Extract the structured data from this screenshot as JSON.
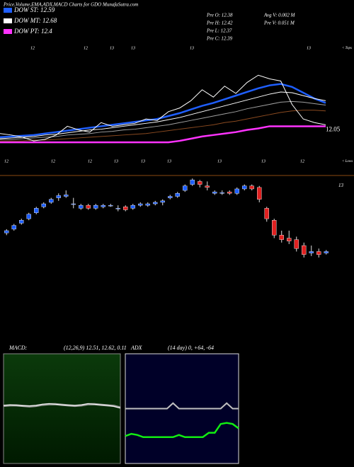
{
  "title": "Price,Volume,EMA,ADX,MACD Charts for GDO MunafaSutra.com",
  "stats": [
    "Pre  O: 12.38",
    "Avg V: 0.002  M",
    "Pre  H: 12.42",
    "Pre  V: 0.051  M",
    "Pre  L: 12.37",
    "Pre  C: 12.39"
  ],
  "chart_data": [
    {
      "type": "line",
      "ylim": [
        11.6,
        13.2
      ],
      "last_price": 12.05,
      "tops_label": "< Tops",
      "lows_label": "< Lows",
      "top_marks": [
        12,
        12,
        13,
        13,
        13,
        13
      ],
      "low_marks": [
        12,
        12,
        12,
        13,
        13,
        13,
        13,
        13,
        12
      ],
      "series": [
        {
          "name": "DOW ST: 12.59",
          "color": "#1f5fff",
          "width": 2.5,
          "values": [
            11.95,
            11.96,
            11.97,
            11.98,
            12.0,
            12.02,
            12.04,
            12.06,
            12.08,
            12.1,
            12.12,
            12.14,
            12.16,
            12.18,
            12.2,
            12.24,
            12.28,
            12.33,
            12.38,
            12.42,
            12.47,
            12.52,
            12.57,
            12.62,
            12.66,
            12.68,
            12.64,
            12.56,
            12.48,
            12.42
          ]
        },
        {
          "name": "DOW MT: 12.68",
          "color": "#ffffff",
          "width": 1,
          "values": [
            11.93,
            11.94,
            11.95,
            11.96,
            11.98,
            11.99,
            12.01,
            12.03,
            12.05,
            12.06,
            12.08,
            12.1,
            12.12,
            12.14,
            12.16,
            12.19,
            12.22,
            12.26,
            12.3,
            12.34,
            12.38,
            12.42,
            12.46,
            12.5,
            12.54,
            12.57,
            12.56,
            12.52,
            12.48,
            12.45
          ]
        },
        {
          "name": "DOW PT: 12.4",
          "color": "#ff33ff",
          "width": 2.5,
          "values": [
            11.88,
            11.88,
            11.88,
            11.88,
            11.88,
            11.88,
            11.88,
            11.88,
            11.88,
            11.88,
            11.88,
            11.88,
            11.88,
            11.88,
            11.88,
            11.88,
            11.9,
            11.93,
            11.96,
            11.98,
            12.0,
            12.02,
            12.05,
            12.07,
            12.1,
            12.1,
            12.1,
            12.1,
            12.1,
            12.1
          ]
        },
        {
          "color": "#a0a0a0",
          "width": 1,
          "values": [
            11.92,
            11.92,
            11.93,
            11.94,
            11.95,
            11.96,
            11.98,
            11.99,
            12.0,
            12.02,
            12.03,
            12.05,
            12.06,
            12.08,
            12.1,
            12.12,
            12.15,
            12.18,
            12.21,
            12.24,
            12.27,
            12.3,
            12.34,
            12.37,
            12.4,
            12.43,
            12.44,
            12.43,
            12.41,
            12.39
          ]
        },
        {
          "color": "#8a4a20",
          "width": 1,
          "values": [
            11.9,
            11.9,
            11.9,
            11.91,
            11.91,
            11.92,
            11.93,
            11.94,
            11.95,
            11.96,
            11.97,
            11.98,
            11.99,
            12.0,
            12.02,
            12.04,
            12.06,
            12.08,
            12.1,
            12.12,
            12.15,
            12.17,
            12.2,
            12.23,
            12.26,
            12.29,
            12.31,
            12.32,
            12.32,
            12.31
          ]
        },
        {
          "color": "#ffffff",
          "width": 1,
          "values": [
            12.0,
            11.98,
            11.95,
            11.9,
            11.92,
            11.98,
            12.1,
            12.05,
            12.02,
            12.15,
            12.1,
            12.12,
            12.14,
            12.2,
            12.18,
            12.3,
            12.35,
            12.45,
            12.6,
            12.5,
            12.65,
            12.55,
            12.7,
            12.8,
            12.75,
            12.72,
            12.4,
            12.2,
            12.15,
            12.12
          ]
        }
      ]
    },
    {
      "type": "candlestick",
      "ylim": [
        11.8,
        13.1
      ],
      "yticks": [
        13
      ],
      "up_color": "#1f5fff",
      "down_color": "#e02020",
      "open": [
        12.33,
        12.38,
        12.46,
        12.52,
        12.6,
        12.68,
        12.74,
        12.8,
        12.82,
        12.72,
        12.66,
        12.7,
        12.66,
        12.68,
        12.7,
        12.66,
        12.68,
        12.66,
        12.7,
        12.7,
        12.72,
        12.74,
        12.8,
        12.82,
        12.9,
        12.98,
        13.02,
        12.96,
        12.86,
        12.86,
        12.88,
        12.86,
        12.92,
        12.96,
        12.94,
        12.66,
        12.5,
        12.3,
        12.26,
        12.24,
        12.16,
        12.06,
        12.08,
        12.06
      ],
      "high": [
        12.38,
        12.45,
        12.52,
        12.6,
        12.68,
        12.74,
        12.8,
        12.86,
        12.9,
        12.8,
        12.72,
        12.72,
        12.72,
        12.72,
        12.72,
        12.7,
        12.7,
        12.72,
        12.74,
        12.74,
        12.76,
        12.78,
        12.84,
        12.88,
        12.98,
        13.06,
        13.04,
        13.02,
        12.9,
        12.9,
        12.9,
        12.94,
        12.98,
        12.98,
        12.96,
        12.68,
        12.52,
        12.36,
        12.36,
        12.28,
        12.2,
        12.16,
        12.12,
        12.1
      ],
      "low": [
        12.3,
        12.36,
        12.44,
        12.5,
        12.58,
        12.66,
        12.72,
        12.76,
        12.8,
        12.66,
        12.64,
        12.64,
        12.64,
        12.66,
        12.68,
        12.62,
        12.62,
        12.64,
        12.68,
        12.68,
        12.7,
        12.7,
        12.78,
        12.8,
        12.88,
        12.96,
        12.94,
        12.9,
        12.84,
        12.84,
        12.84,
        12.84,
        12.9,
        12.9,
        12.74,
        12.48,
        12.26,
        12.2,
        12.18,
        12.08,
        12.0,
        12.02,
        12.0,
        12.04
      ],
      "close": [
        12.36,
        12.43,
        12.5,
        12.58,
        12.66,
        12.72,
        12.78,
        12.83,
        12.84,
        12.72,
        12.7,
        12.66,
        12.7,
        12.7,
        12.7,
        12.66,
        12.64,
        12.7,
        12.72,
        12.72,
        12.74,
        12.76,
        12.82,
        12.86,
        12.96,
        13.04,
        12.98,
        12.94,
        12.88,
        12.87,
        12.86,
        12.92,
        12.96,
        12.92,
        12.78,
        12.52,
        12.3,
        12.24,
        12.22,
        12.12,
        12.04,
        12.08,
        12.04,
        12.08
      ]
    },
    {
      "type": "line",
      "title": "MACD:",
      "subtitle": "(12,26,9) 12.51, 12.62, 0.11",
      "ylim": [
        11.5,
        13.5
      ],
      "series": [
        {
          "color": "#a0a0a0",
          "width": 3,
          "values": [
            12.55,
            12.56,
            12.56,
            12.55,
            12.54,
            12.55,
            12.57,
            12.58,
            12.58,
            12.57,
            12.56,
            12.55,
            12.56,
            12.58,
            12.58,
            12.57,
            12.56,
            12.55,
            12.52
          ]
        },
        {
          "color": "#ffffff",
          "width": 1,
          "values": [
            12.56,
            12.57,
            12.56,
            12.55,
            12.55,
            12.56,
            12.58,
            12.59,
            12.58,
            12.57,
            12.56,
            12.56,
            12.57,
            12.59,
            12.58,
            12.57,
            12.56,
            12.54,
            12.51
          ]
        }
      ]
    },
    {
      "type": "line",
      "title": "ADX",
      "subtitle": "(14 day) 0, +64, -64",
      "ylim": [
        0,
        100
      ],
      "series": [
        {
          "color": "#c0c0c0",
          "width": 2,
          "values": [
            50,
            50,
            50,
            50,
            50,
            50,
            50,
            50,
            55,
            50,
            50,
            50,
            50,
            50,
            50,
            50,
            50,
            55,
            50,
            50
          ]
        },
        {
          "color": "#11ee11",
          "width": 2.5,
          "values": [
            25,
            27,
            26,
            24,
            24,
            24,
            24,
            24,
            24,
            26,
            24,
            24,
            24,
            24,
            28,
            28,
            36,
            37,
            36,
            32
          ]
        }
      ]
    }
  ]
}
